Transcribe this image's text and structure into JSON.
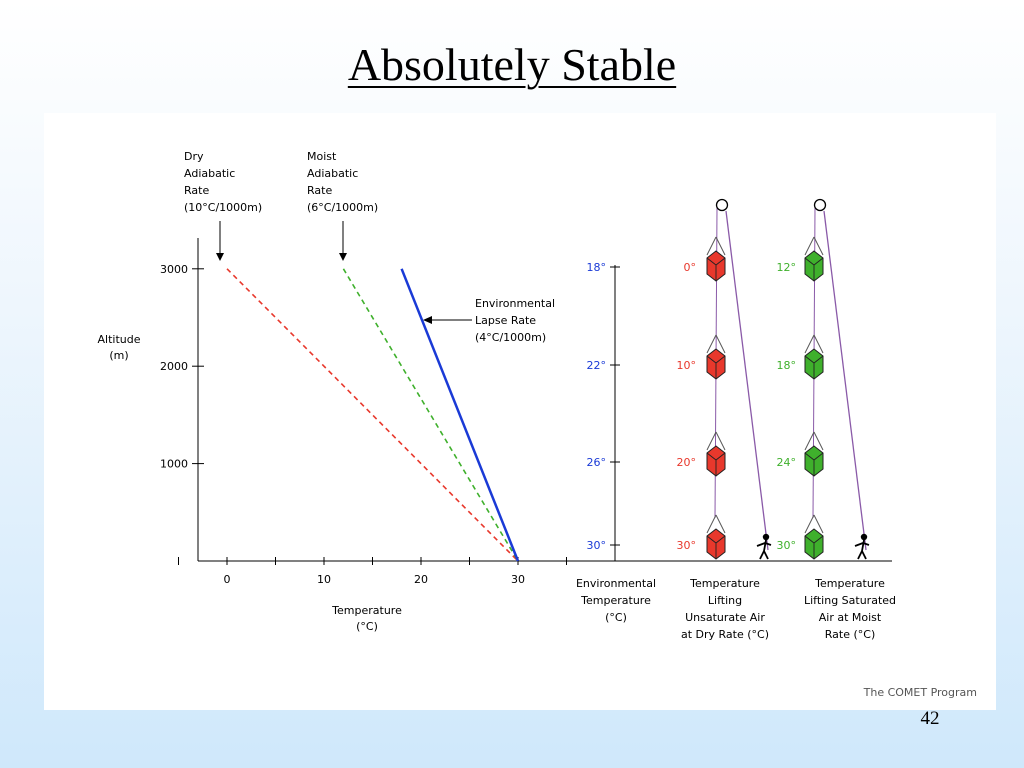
{
  "title": "Absolutely Stable",
  "slide_number": "42",
  "credit": "The COMET Program",
  "colors": {
    "dry": "#e8382c",
    "moist": "#3fb02c",
    "env": "#1a3ad6",
    "rope": "#8a5aa8",
    "axis_text_env": "#1a3ad6"
  },
  "chart_data": {
    "type": "line",
    "x": [
      0,
      10,
      20,
      30
    ],
    "xlabel": [
      "Temperature",
      "(°C)"
    ],
    "ylabel": [
      "Altitude",
      "(m)"
    ],
    "xticks": [
      "0",
      "10",
      "20",
      "30"
    ],
    "yticks": [
      "3000",
      "2000",
      "1000"
    ],
    "series": [
      {
        "name": "Dry Adiabatic Rate (10°C/1000m)",
        "points": [
          [
            0,
            3000
          ],
          [
            30,
            0
          ]
        ],
        "style": "dashed",
        "color": "#e8382c"
      },
      {
        "name": "Moist Adiabatic Rate (6°C/1000m)",
        "points": [
          [
            12,
            3000
          ],
          [
            30,
            0
          ]
        ],
        "style": "dashed",
        "color": "#3fb02c"
      },
      {
        "name": "Environmental Lapse Rate (4°C/1000m)",
        "points": [
          [
            18,
            3000
          ],
          [
            30,
            0
          ]
        ],
        "style": "solid",
        "color": "#1a3ad6"
      }
    ],
    "annotations": {
      "dry": [
        "Dry",
        "Adiabatic",
        "Rate",
        "(10°C/1000m)"
      ],
      "moist": [
        "Moist",
        "Adiabatic",
        "Rate",
        "(6°C/1000m)"
      ],
      "env": [
        "Environmental",
        "Lapse Rate",
        "(4°C/1000m)"
      ]
    },
    "columns": [
      {
        "name": "environmental",
        "values": [
          "18°",
          "22°",
          "26°",
          "30°"
        ],
        "label": [
          "Environmental",
          "Temperature",
          "(°C)"
        ]
      },
      {
        "name": "dry-lift",
        "values": [
          "0°",
          "10°",
          "20°",
          "30°"
        ],
        "label": [
          "Temperature",
          "Lifting",
          "Unsaturate Air",
          "at Dry Rate (°C)"
        ]
      },
      {
        "name": "moist-lift",
        "values": [
          "12°",
          "18°",
          "24°",
          "30°"
        ],
        "label": [
          "Temperature",
          "Lifting Saturated",
          "Air at Moist",
          "Rate (°C)"
        ]
      }
    ],
    "altitudes": [
      3000,
      2000,
      1000,
      0
    ]
  }
}
